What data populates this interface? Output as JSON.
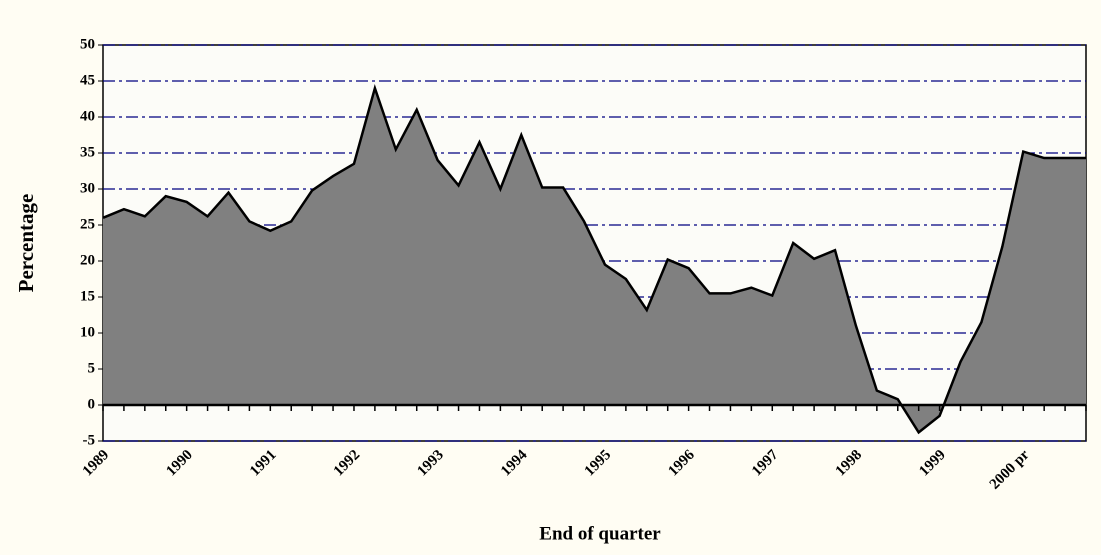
{
  "chart_data": {
    "type": "area",
    "xlabel": "End of quarter",
    "ylabel": "Percentage",
    "categories": [
      "1989",
      null,
      null,
      null,
      "1990",
      null,
      null,
      null,
      "1991",
      null,
      null,
      null,
      "1992",
      null,
      null,
      null,
      "1993",
      null,
      null,
      null,
      "1994",
      null,
      null,
      null,
      "1995",
      null,
      null,
      null,
      "1996",
      null,
      null,
      null,
      "1997",
      null,
      null,
      null,
      "1998",
      null,
      null,
      null,
      "1999",
      null,
      null,
      null,
      "2000 pr",
      null,
      null,
      null
    ],
    "values": [
      26,
      27.2,
      26.2,
      29,
      28.2,
      26.2,
      29.5,
      25.5,
      24.2,
      25.5,
      29.8,
      31.8,
      33.5,
      44,
      35.5,
      41,
      34,
      30.5,
      36.5,
      30,
      37.5,
      30.2,
      30.2,
      25.5,
      19.5,
      17.5,
      13.2,
      20.2,
      19,
      15.5,
      15.5,
      16.3,
      15.2,
      22.5,
      20.3,
      21.5,
      11,
      2,
      0.8,
      -3.8,
      -1.5,
      6,
      11.5,
      22,
      35.2,
      34.3,
      34.3,
      34.3
    ],
    "color": "#808080",
    "ylim": [
      -5,
      50
    ],
    "yticks": [
      -5,
      0,
      5,
      10,
      15,
      20,
      25,
      30,
      35,
      40,
      45,
      50
    ],
    "grid": true
  }
}
